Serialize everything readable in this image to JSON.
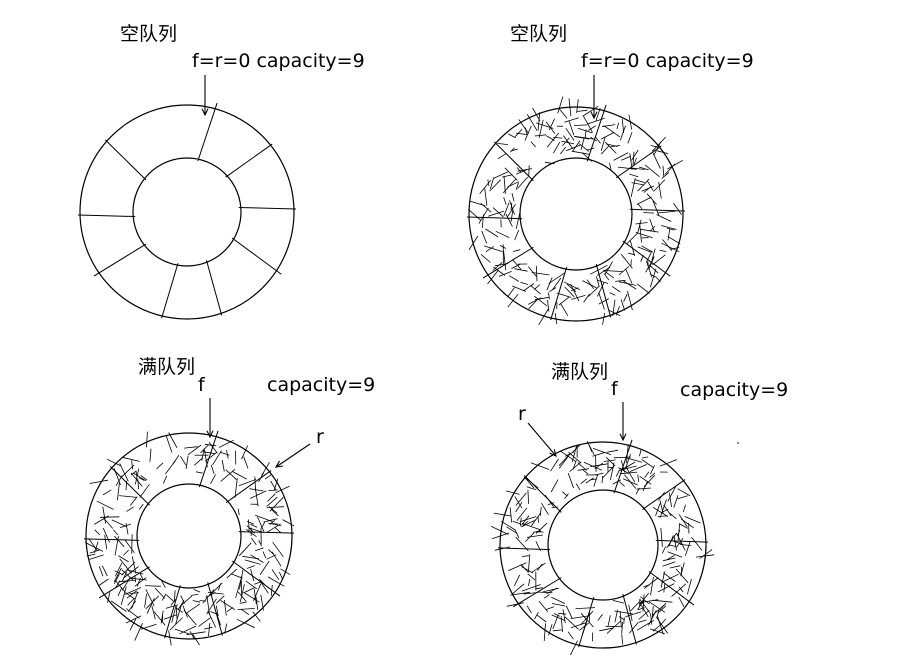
{
  "panels": [
    {
      "title": "空队列",
      "pointer_text": "f=r=0 capacity=9",
      "state": "empty"
    },
    {
      "title": "空队列",
      "pointer_text": "f=r=0 capacity=9",
      "state": "full-shaded"
    },
    {
      "title": "满队列",
      "front_label": "f",
      "rear_label": "r",
      "capacity_text": "capacity=9",
      "state": "full"
    },
    {
      "title": "满队列",
      "front_label": "f",
      "rear_label": "r",
      "capacity_text": "capacity=9",
      "state": "full"
    }
  ],
  "colors": {
    "line": "#000000",
    "background": "#ffffff"
  }
}
